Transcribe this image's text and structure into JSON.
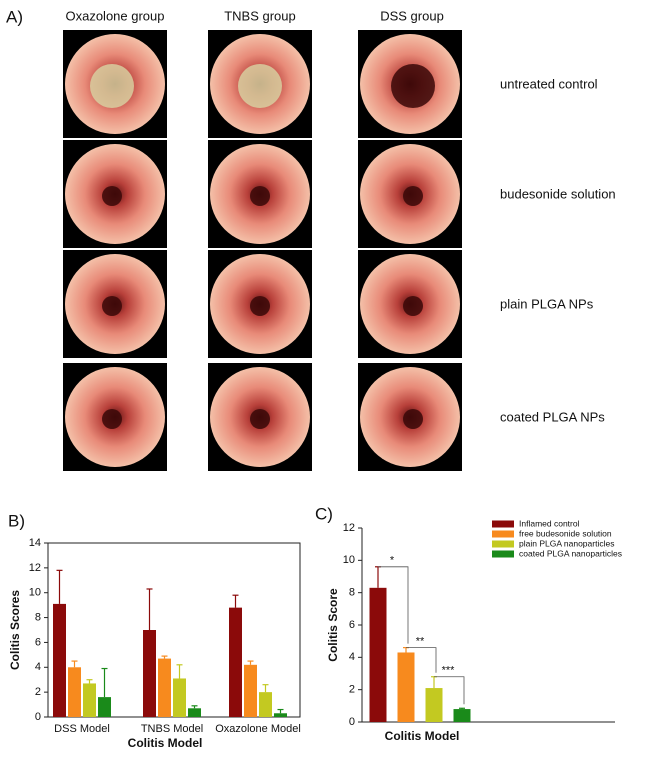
{
  "panel_a": {
    "label": "A)",
    "columns": [
      "Oxazolone group",
      "TNBS group",
      "DSS group"
    ],
    "rows": [
      "untreated control",
      "budesonide solution",
      "plain PLGA NPs",
      "coated PLGA NPs"
    ]
  },
  "chart_data": [
    {
      "type": "bar",
      "panel_label": "B)",
      "xlabel": "Colitis Model",
      "ylabel": "Colitis Scores",
      "categories": [
        "DSS Model",
        "TNBS Model",
        "Oxazolone Model"
      ],
      "series": [
        {
          "color": "#8b0a0a",
          "values": [
            9.1,
            7.0,
            8.8
          ],
          "errors": [
            2.7,
            3.3,
            1.0
          ]
        },
        {
          "color": "#f78a1e",
          "values": [
            4.0,
            4.7,
            4.2
          ],
          "errors": [
            0.5,
            0.2,
            0.3
          ]
        },
        {
          "color": "#c3c921",
          "values": [
            2.7,
            3.1,
            2.0
          ],
          "errors": [
            0.3,
            1.1,
            0.6
          ]
        },
        {
          "color": "#1a8a1a",
          "values": [
            1.6,
            0.7,
            0.3
          ],
          "errors": [
            2.3,
            0.2,
            0.3
          ]
        }
      ],
      "ylim": [
        0,
        14
      ],
      "yticks": [
        0,
        2,
        4,
        6,
        8,
        10,
        12,
        14
      ]
    },
    {
      "type": "bar",
      "panel_label": "C)",
      "xlabel": "Colitis Model",
      "ylabel": "Colitis Score",
      "series": [
        {
          "name": "Inflamed control",
          "color": "#8b0a0a",
          "values": [
            8.3
          ],
          "errors": [
            1.3
          ]
        },
        {
          "name": "free budesonide solution",
          "color": "#f78a1e",
          "values": [
            4.3
          ],
          "errors": [
            0.3
          ]
        },
        {
          "name": "plain PLGA nanoparticles",
          "color": "#c3c921",
          "values": [
            2.1
          ],
          "errors": [
            0.7
          ]
        },
        {
          "name": "coated PLGA nanoparticles",
          "color": "#1a8a1a",
          "values": [
            0.8
          ],
          "errors": [
            0.05
          ]
        }
      ],
      "annotations": [
        "*",
        "**",
        "***"
      ],
      "ylim": [
        0,
        12
      ],
      "yticks": [
        0,
        2,
        4,
        6,
        8,
        10,
        12
      ],
      "legend": "upper right"
    }
  ]
}
